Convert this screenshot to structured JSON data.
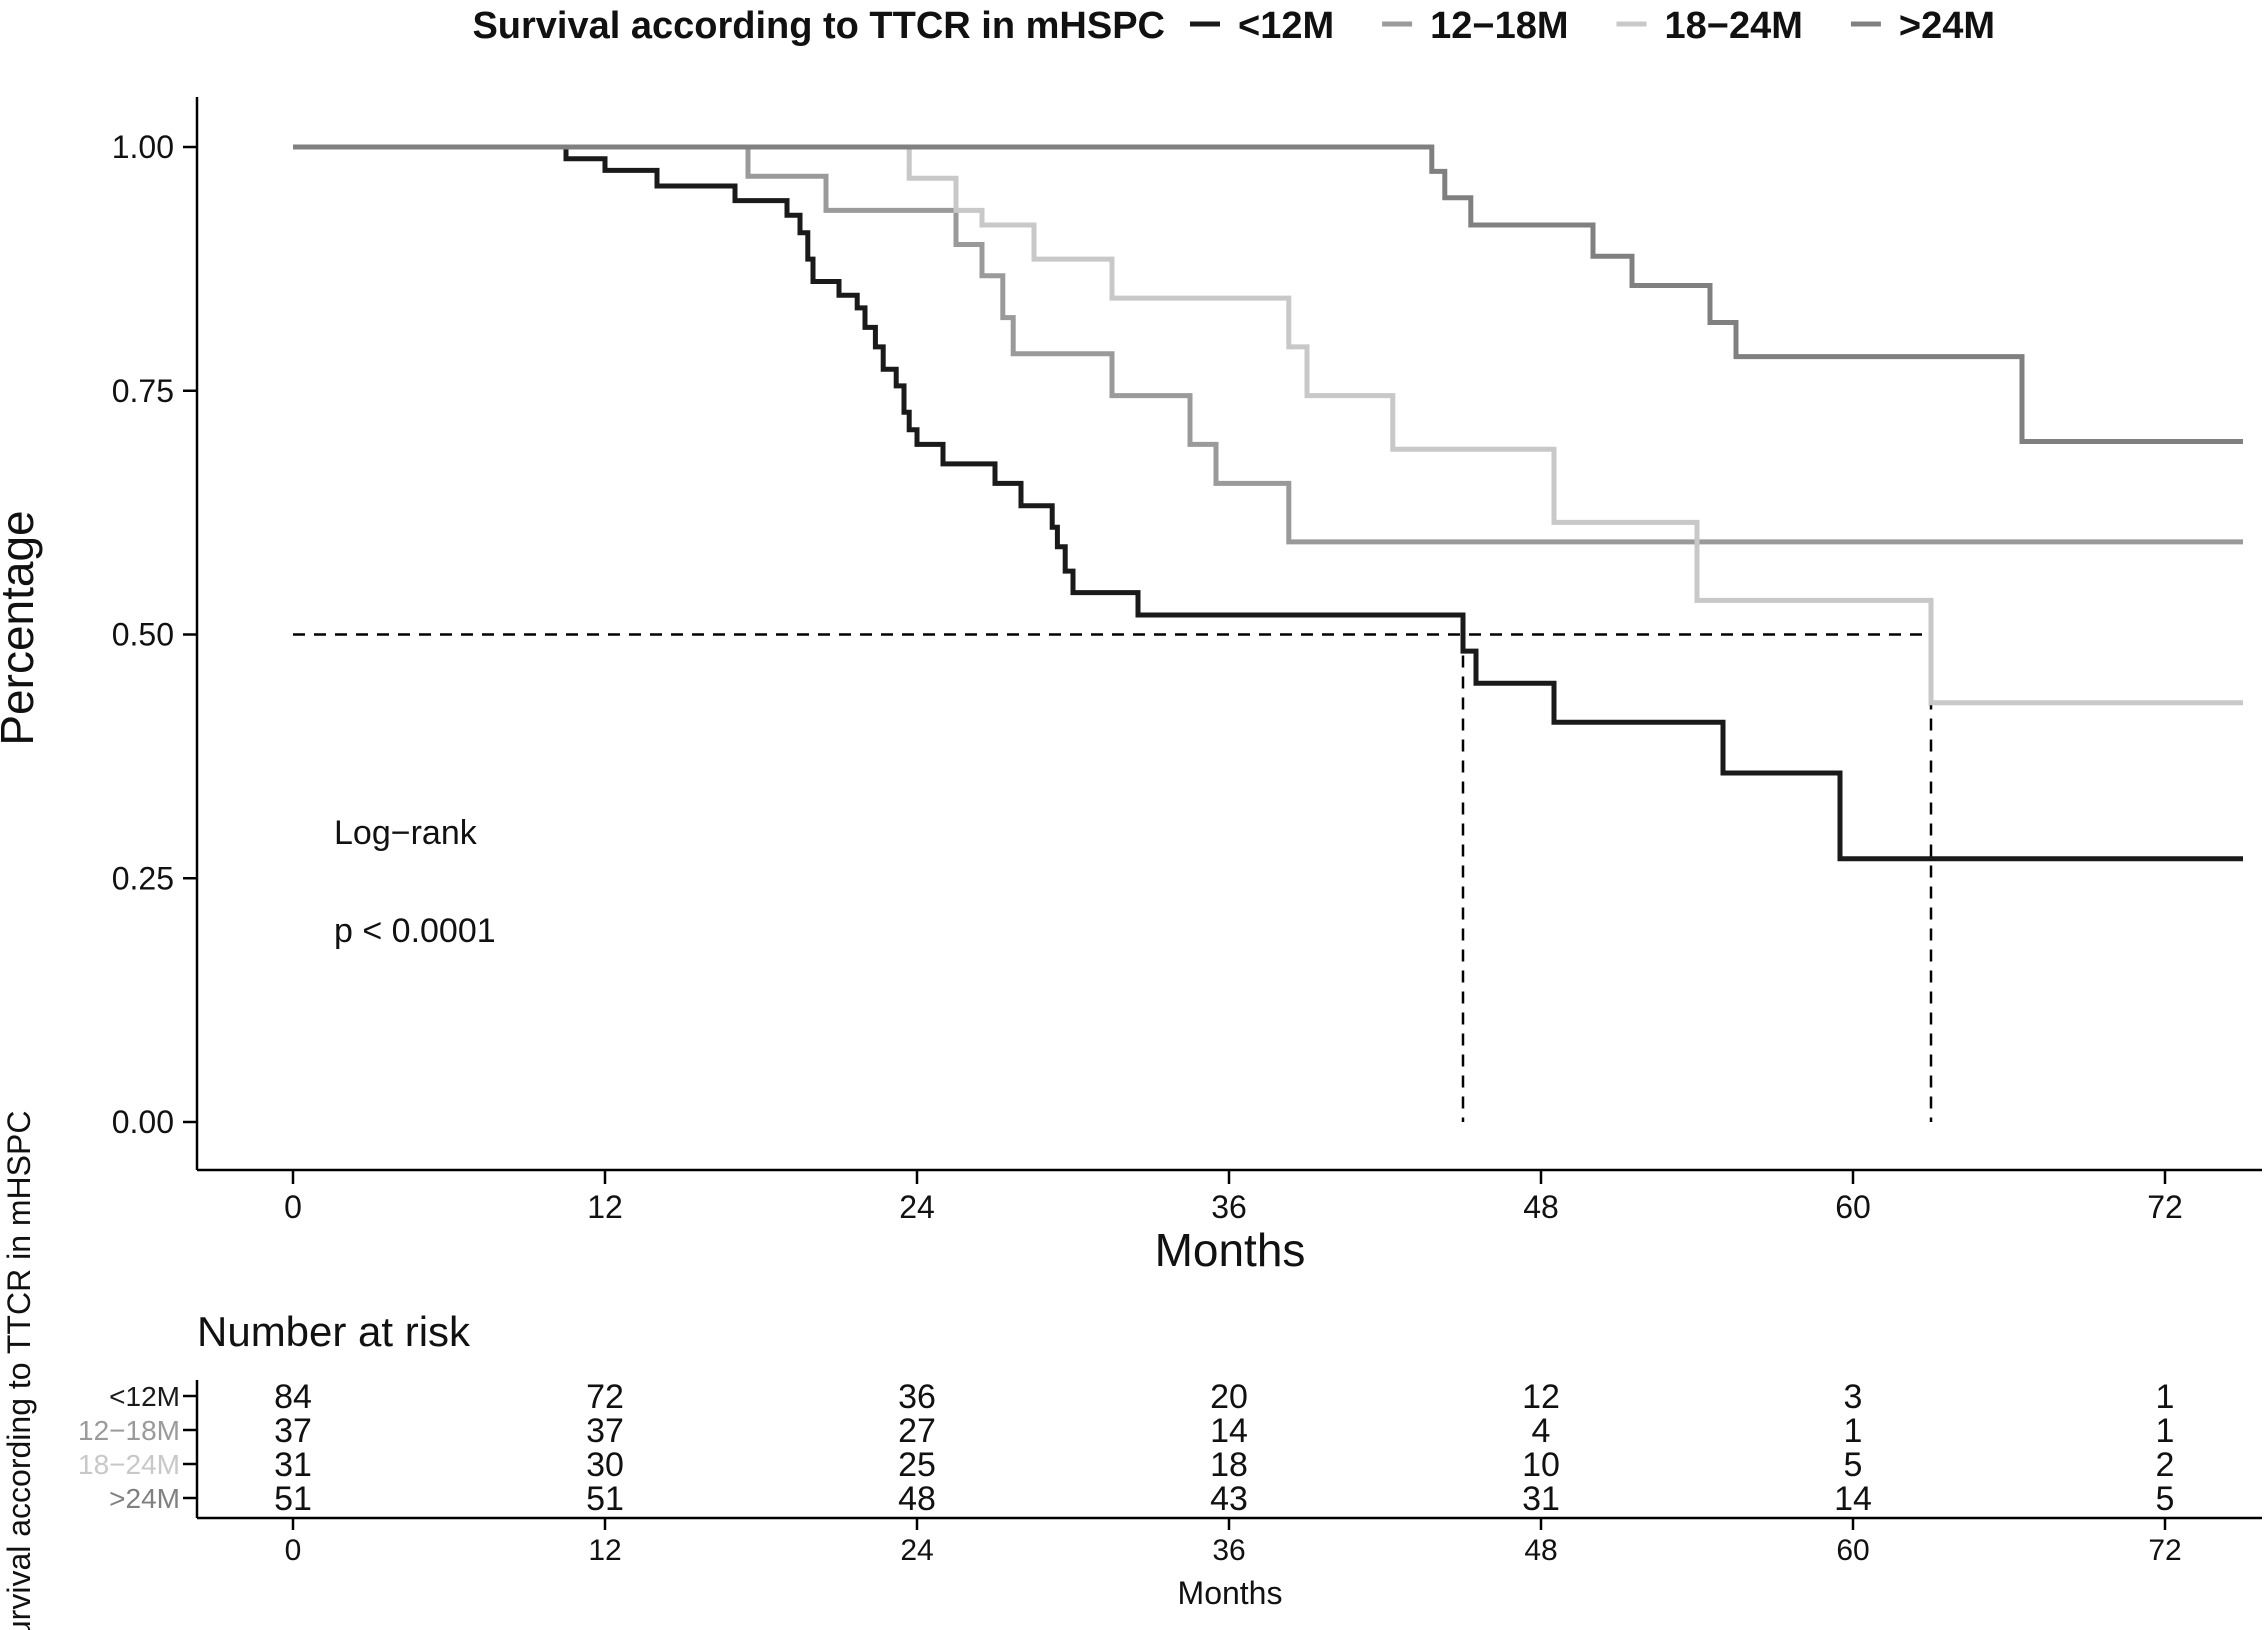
{
  "chart_data": {
    "type": "line",
    "title": "Survival according to TTCR in mHSPC",
    "xlabel": "Months",
    "ylabel": "Percentage",
    "xlim": [
      0,
      75
    ],
    "ylim": [
      0,
      1
    ],
    "x_ticks": [
      "0",
      "12",
      "24",
      "36",
      "48",
      "60",
      "72"
    ],
    "y_ticks": [
      "0.00",
      "0.25",
      "0.50",
      "0.75",
      "1.00"
    ],
    "annotations": [
      "Log−rank",
      "p < 0.0001"
    ],
    "median_reference": {
      "y": 0.5,
      "x_end": 63,
      "drops": [
        45,
        63
      ]
    },
    "series": [
      {
        "name": "<12M",
        "color": "#1a1a1a",
        "points": [
          [
            0,
            1
          ],
          [
            10.5,
            1
          ],
          [
            10.5,
            0.988
          ],
          [
            12,
            0.988
          ],
          [
            12,
            0.976
          ],
          [
            14,
            0.976
          ],
          [
            14,
            0.96
          ],
          [
            17,
            0.96
          ],
          [
            17,
            0.945
          ],
          [
            19,
            0.945
          ],
          [
            19,
            0.93
          ],
          [
            19.5,
            0.93
          ],
          [
            19.5,
            0.912
          ],
          [
            19.8,
            0.912
          ],
          [
            19.8,
            0.885
          ],
          [
            20,
            0.885
          ],
          [
            20,
            0.862
          ],
          [
            21,
            0.862
          ],
          [
            21,
            0.848
          ],
          [
            21.7,
            0.848
          ],
          [
            21.7,
            0.835
          ],
          [
            22,
            0.835
          ],
          [
            22,
            0.815
          ],
          [
            22.4,
            0.815
          ],
          [
            22.4,
            0.795
          ],
          [
            22.7,
            0.795
          ],
          [
            22.7,
            0.772
          ],
          [
            23.2,
            0.772
          ],
          [
            23.2,
            0.755
          ],
          [
            23.5,
            0.755
          ],
          [
            23.5,
            0.728
          ],
          [
            23.7,
            0.728
          ],
          [
            23.7,
            0.71
          ],
          [
            24,
            0.71
          ],
          [
            24,
            0.695
          ],
          [
            25,
            0.695
          ],
          [
            25,
            0.675
          ],
          [
            27,
            0.675
          ],
          [
            27,
            0.655
          ],
          [
            28,
            0.655
          ],
          [
            28,
            0.632
          ],
          [
            29.2,
            0.632
          ],
          [
            29.2,
            0.61
          ],
          [
            29.4,
            0.61
          ],
          [
            29.4,
            0.59
          ],
          [
            29.7,
            0.59
          ],
          [
            29.7,
            0.565
          ],
          [
            30,
            0.565
          ],
          [
            30,
            0.543
          ],
          [
            32.5,
            0.543
          ],
          [
            32.5,
            0.52
          ],
          [
            45,
            0.52
          ],
          [
            45,
            0.502
          ],
          [
            45,
            0.483
          ],
          [
            45.5,
            0.483
          ],
          [
            45.5,
            0.45
          ],
          [
            48.5,
            0.45
          ],
          [
            48.5,
            0.41
          ],
          [
            55,
            0.41
          ],
          [
            55,
            0.358
          ],
          [
            59.5,
            0.358
          ],
          [
            59.5,
            0.27
          ],
          [
            75,
            0.27
          ]
        ]
      },
      {
        "name": "12−18M",
        "color": "#9a9a9a",
        "points": [
          [
            0,
            1
          ],
          [
            17.5,
            1
          ],
          [
            17.5,
            0.97
          ],
          [
            20.5,
            0.97
          ],
          [
            20.5,
            0.935
          ],
          [
            25.5,
            0.935
          ],
          [
            25.5,
            0.9
          ],
          [
            26.5,
            0.9
          ],
          [
            26.5,
            0.868
          ],
          [
            27.3,
            0.868
          ],
          [
            27.3,
            0.825
          ],
          [
            27.7,
            0.825
          ],
          [
            27.7,
            0.788
          ],
          [
            31.5,
            0.788
          ],
          [
            31.5,
            0.745
          ],
          [
            34.5,
            0.745
          ],
          [
            34.5,
            0.695
          ],
          [
            35.5,
            0.695
          ],
          [
            35.5,
            0.655
          ],
          [
            38.3,
            0.655
          ],
          [
            38.3,
            0.595
          ],
          [
            75,
            0.595
          ]
        ]
      },
      {
        "name": "18−24M",
        "color": "#c8c8c8",
        "points": [
          [
            0,
            1
          ],
          [
            23.7,
            1
          ],
          [
            23.7,
            0.968
          ],
          [
            25.5,
            0.968
          ],
          [
            25.5,
            0.935
          ],
          [
            26.5,
            0.935
          ],
          [
            26.5,
            0.92
          ],
          [
            28.5,
            0.92
          ],
          [
            28.5,
            0.885
          ],
          [
            31.5,
            0.885
          ],
          [
            31.5,
            0.845
          ],
          [
            38.3,
            0.845
          ],
          [
            38.3,
            0.795
          ],
          [
            39,
            0.795
          ],
          [
            39,
            0.745
          ],
          [
            42.3,
            0.745
          ],
          [
            42.3,
            0.69
          ],
          [
            48.5,
            0.69
          ],
          [
            48.5,
            0.615
          ],
          [
            54,
            0.615
          ],
          [
            54,
            0.535
          ],
          [
            63,
            0.535
          ],
          [
            63,
            0.43
          ],
          [
            75,
            0.43
          ]
        ]
      },
      {
        "name": ">24M",
        "color": "#808080",
        "points": [
          [
            0,
            1
          ],
          [
            43.8,
            1
          ],
          [
            43.8,
            0.975
          ],
          [
            44.3,
            0.975
          ],
          [
            44.3,
            0.948
          ],
          [
            45.3,
            0.948
          ],
          [
            45.3,
            0.92
          ],
          [
            50,
            0.92
          ],
          [
            50,
            0.888
          ],
          [
            51.5,
            0.888
          ],
          [
            51.5,
            0.858
          ],
          [
            54.5,
            0.858
          ],
          [
            54.5,
            0.82
          ],
          [
            55.5,
            0.82
          ],
          [
            55.5,
            0.785
          ],
          [
            66.5,
            0.785
          ],
          [
            66.5,
            0.698
          ],
          [
            75,
            0.698
          ]
        ]
      }
    ],
    "risk_table": {
      "title": "Number at risk",
      "ylabel": "Survival according to TTCR in mHSPC",
      "xlabel": "Months",
      "times": [
        "0",
        "12",
        "24",
        "36",
        "48",
        "60",
        "72"
      ],
      "rows": [
        {
          "group": "<12M",
          "color": "#1a1a1a",
          "counts": [
            "84",
            "72",
            "36",
            "20",
            "12",
            "3",
            "1"
          ]
        },
        {
          "group": "12−18M",
          "color": "#9a9a9a",
          "counts": [
            "37",
            "37",
            "27",
            "14",
            "4",
            "1",
            "1"
          ]
        },
        {
          "group": "18−24M",
          "color": "#c8c8c8",
          "counts": [
            "31",
            "30",
            "25",
            "18",
            "10",
            "5",
            "2"
          ]
        },
        {
          "group": ">24M",
          "color": "#808080",
          "counts": [
            "51",
            "51",
            "48",
            "43",
            "31",
            "14",
            "5"
          ]
        }
      ]
    }
  }
}
